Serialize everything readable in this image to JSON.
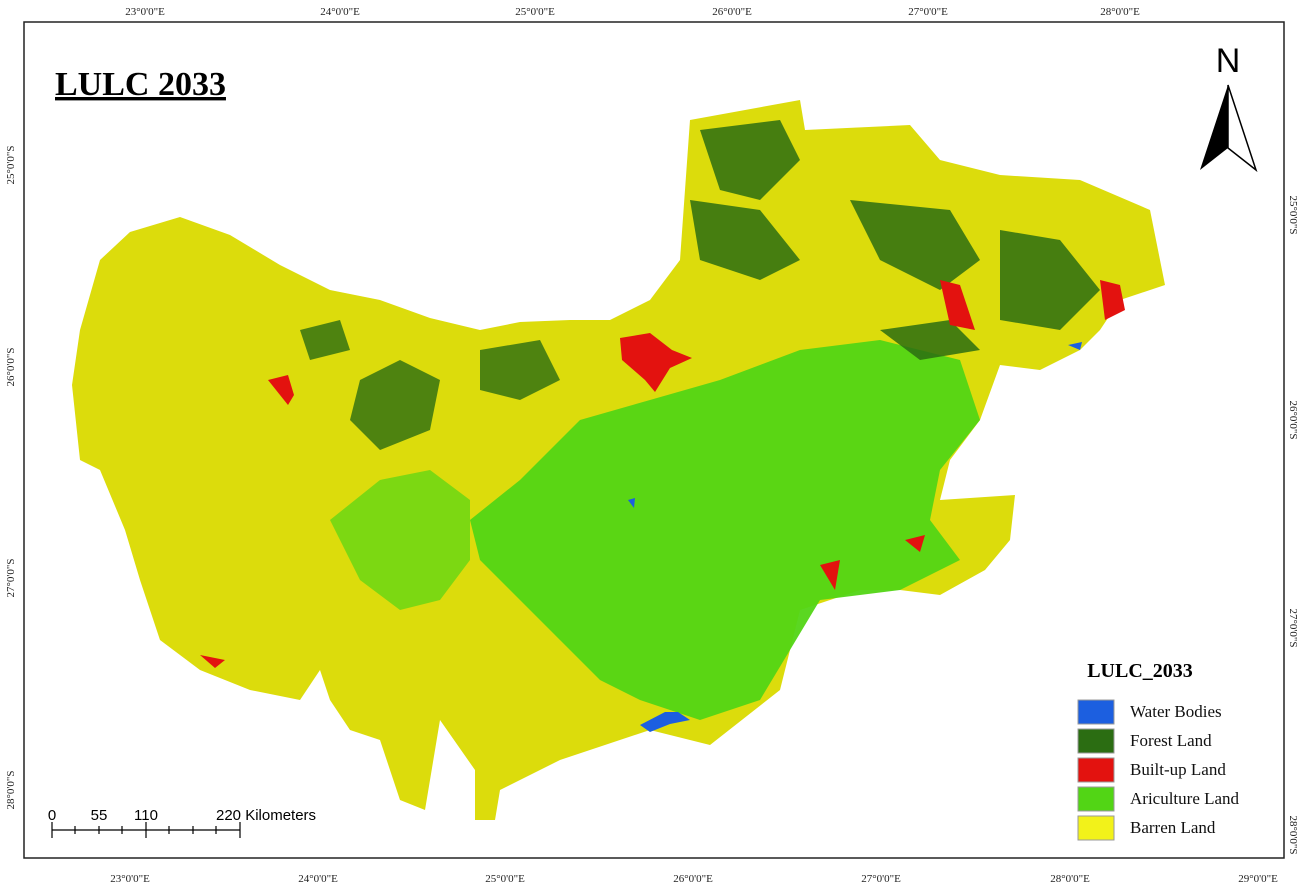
{
  "title": "LULC 2033",
  "north_arrow": "N",
  "graticule": {
    "top": [
      "23°0'0\"E",
      "24°0'0\"E",
      "25°0'0\"E",
      "26°0'0\"E",
      "27°0'0\"E",
      "28°0'0\"E"
    ],
    "bottom": [
      "23°0'0\"E",
      "24°0'0\"E",
      "25°0'0\"E",
      "26°0'0\"E",
      "27°0'0\"E",
      "28°0'0\"E",
      "29°0'0\"E"
    ],
    "left": [
      "25°0'0\"S",
      "26°0'0\"S",
      "27°0'0\"S",
      "28°0'0\"S"
    ],
    "right": [
      "25°0'0\"S",
      "26°0'0\"S",
      "27°0'0\"S",
      "28°0'0\"S"
    ]
  },
  "scale_bar": {
    "labels": [
      "0",
      "55",
      "110",
      "220 Kilometers"
    ]
  },
  "legend": {
    "title": "LULC_2033",
    "items": [
      {
        "label": "Water Bodies",
        "color": "#1c5fe0"
      },
      {
        "label": "Forest Land",
        "color": "#2b6d12"
      },
      {
        "label": "Built-up Land",
        "color": "#e3120f"
      },
      {
        "label": "Ariculture Land",
        "color": "#52d515"
      },
      {
        "label": "Barren Land",
        "color": "#f2f21a"
      }
    ]
  }
}
